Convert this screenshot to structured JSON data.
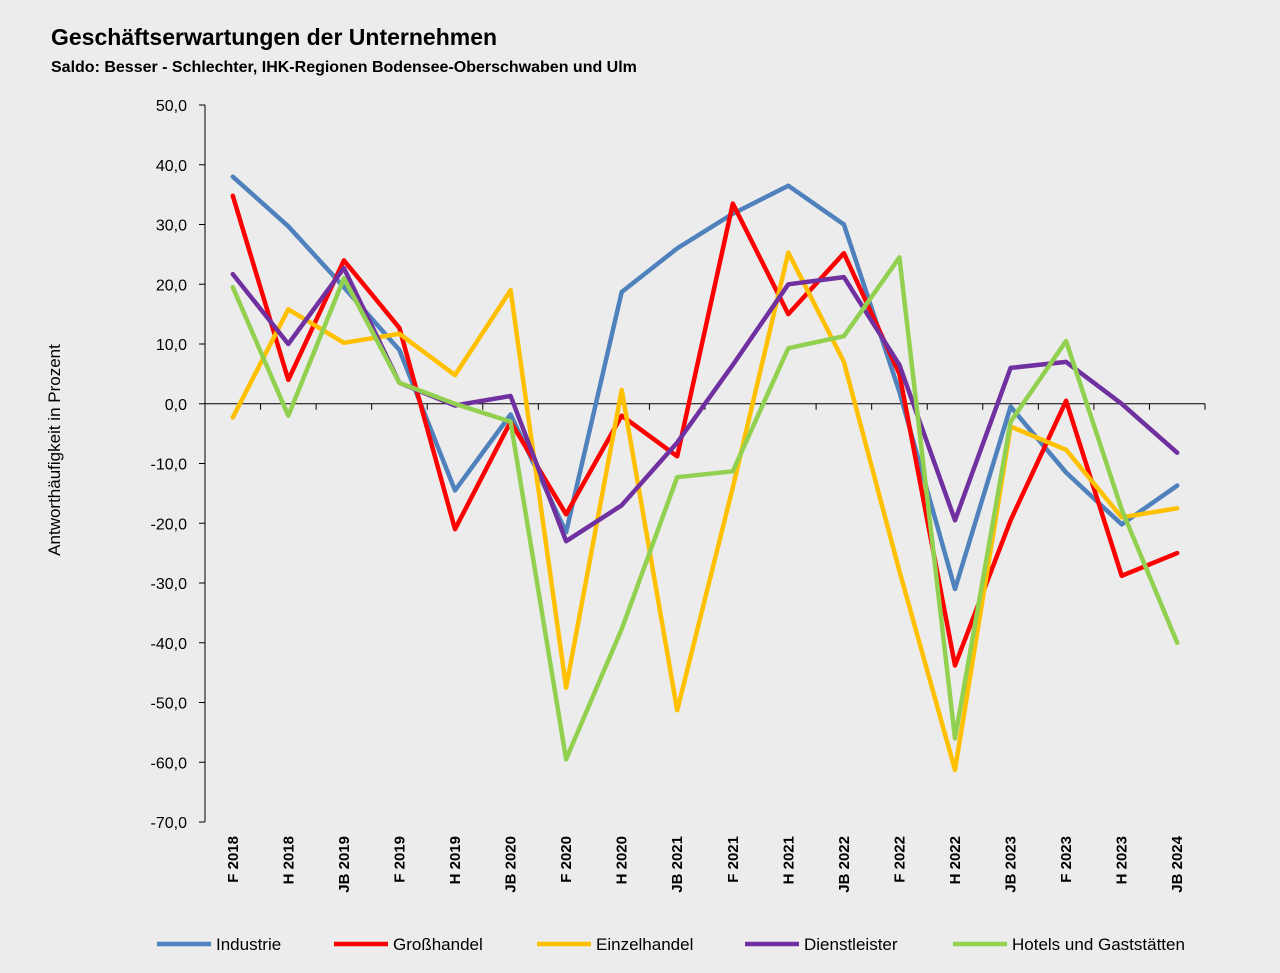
{
  "chart_data": {
    "type": "line",
    "title": "Geschäftserwartungen der Unternehmen",
    "subtitle": "Saldo: Besser - Schlechter, IHK-Regionen Bodensee-Oberschwaben und Ulm",
    "ylabel": "Antworthäufigkeit in Prozent",
    "xlabel": "",
    "ylim": [
      -70,
      50
    ],
    "ytick_step": 10,
    "ytick_labels": [
      "50,0",
      "40,0",
      "30,0",
      "20,0",
      "10,0",
      "0,0",
      "-10,0",
      "-20,0",
      "-30,0",
      "-40,0",
      "-50,0",
      "-60,0",
      "-70,0"
    ],
    "categories": [
      "F 2018",
      "H 2018",
      "JB 2019",
      "F 2019",
      "H 2019",
      "JB 2020",
      "F 2020",
      "H 2020",
      "JB 2021",
      "F 2021",
      "H 2021",
      "JB 2022",
      "F 2022",
      "H 2022",
      "JB 2023",
      "F 2023",
      "H 2023",
      "JB 2024"
    ],
    "grid": false,
    "legend_position": "bottom",
    "series": [
      {
        "name": "Industrie",
        "color": "#4f81bd",
        "values": [
          38.0,
          29.7,
          19.5,
          9.0,
          -14.5,
          -1.8,
          -21.5,
          18.7,
          26.0,
          31.8,
          36.5,
          30.0,
          2.0,
          -31.0,
          -0.5,
          -11.5,
          -20.2,
          -13.7
        ]
      },
      {
        "name": "Großhandel",
        "color": "#ff0000",
        "values": [
          34.8,
          4.0,
          24.0,
          12.7,
          -21.0,
          -3.0,
          -18.5,
          -2.0,
          -8.8,
          33.5,
          15.0,
          25.2,
          5.0,
          -43.8,
          -19.5,
          0.5,
          -28.8,
          -25.0
        ]
      },
      {
        "name": "Einzelhandel",
        "color": "#ffc000",
        "values": [
          -2.3,
          15.8,
          10.2,
          11.7,
          4.8,
          19.0,
          -47.5,
          2.3,
          -51.3,
          -14.0,
          25.3,
          7.0,
          -28.0,
          -61.3,
          -3.8,
          -7.7,
          -19.0,
          -17.5
        ]
      },
      {
        "name": "Dienstleister",
        "color": "#7030a0",
        "values": [
          21.7,
          10.0,
          22.7,
          3.5,
          -0.3,
          1.3,
          -23.0,
          -17.0,
          -6.5,
          6.5,
          20.0,
          21.2,
          6.5,
          -19.5,
          6.0,
          7.0,
          0.0,
          -8.2
        ]
      },
      {
        "name": "Hotels und Gaststätten",
        "color": "#92d050",
        "values": [
          19.5,
          -2.0,
          21.0,
          3.5,
          0.0,
          -3.0,
          -59.5,
          -37.7,
          -12.3,
          -11.3,
          9.3,
          11.3,
          24.5,
          -56.0,
          -3.0,
          10.5,
          -17.7,
          -40.0
        ]
      }
    ]
  }
}
